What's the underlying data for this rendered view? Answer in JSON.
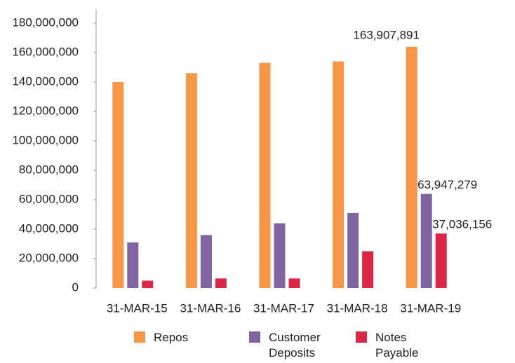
{
  "chart_data": {
    "type": "bar",
    "categories": [
      "31-MAR-15",
      "31-MAR-16",
      "31-MAR-17",
      "31-MAR-18",
      "31-MAR-19"
    ],
    "series": [
      {
        "name": "Repos",
        "color": "#f79646",
        "values": [
          140000000,
          146000000,
          153000000,
          154000000,
          163907891
        ],
        "value_labels": [
          null,
          null,
          null,
          null,
          "163,907,891"
        ]
      },
      {
        "name": "Customer Deposits",
        "color": "#8064a2",
        "values": [
          31000000,
          36000000,
          44000000,
          51000000,
          63947279
        ],
        "value_labels": [
          null,
          null,
          null,
          null,
          "63,947,279"
        ]
      },
      {
        "name": "Notes Payable",
        "color": "#dc2846",
        "values": [
          5000000,
          6500000,
          6500000,
          25000000,
          37036156
        ],
        "value_labels": [
          null,
          null,
          null,
          null,
          "37,036,156"
        ]
      }
    ],
    "ylim": [
      0,
      180000000
    ],
    "yticks": [
      0,
      {
        "value": 20000000,
        "label": "20,000,000"
      },
      {
        "value": 40000000,
        "label": "40,000,000"
      },
      {
        "value": 60000000,
        "label": "60,000,000"
      },
      {
        "value": 80000000,
        "label": "80,000,000"
      },
      {
        "value": 100000000,
        "label": "100,000,000"
      },
      {
        "value": 120000000,
        "label": "120,000,000"
      },
      {
        "value": 140000000,
        "label": "140,000,000"
      },
      {
        "value": 160000000,
        "label": "160,000,000"
      },
      {
        "value": 180000000,
        "label": "180,000,000"
      }
    ],
    "grid": false,
    "legend": "bottom"
  }
}
